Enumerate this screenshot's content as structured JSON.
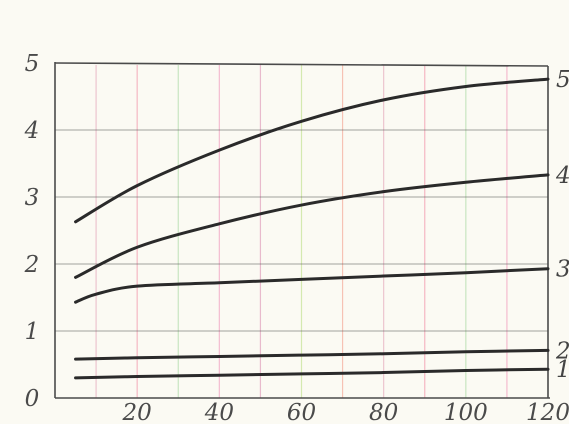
{
  "chart_data": {
    "type": "line",
    "title": "",
    "xlabel": "",
    "ylabel": "",
    "xlim": [
      0,
      120
    ],
    "ylim": [
      0,
      5
    ],
    "x_ticks": [
      20,
      40,
      60,
      80,
      100,
      120
    ],
    "y_ticks": [
      0,
      1,
      2,
      3,
      4,
      5
    ],
    "x_tick_labels": [
      "20",
      "40",
      "60",
      "80",
      "100",
      "120"
    ],
    "y_tick_labels": [
      "0",
      "1",
      "2",
      "3",
      "4",
      "5"
    ],
    "grid": true,
    "legend": "none",
    "colors": {
      "line": "#2a2a2a",
      "axis": "#4a4a4a",
      "grid_vertical": [
        "#e7b3c2",
        "#f2a1b4",
        "#b7dfb0",
        "#f2a6c3",
        "#e2a5c0",
        "#c8e49a",
        "#f5b0a0"
      ],
      "background": "#fbfaf3"
    },
    "series": [
      {
        "name": "1",
        "x": [
          5,
          20,
          40,
          60,
          80,
          100,
          120
        ],
        "values": [
          0.3,
          0.32,
          0.34,
          0.36,
          0.38,
          0.41,
          0.43
        ]
      },
      {
        "name": "2",
        "x": [
          5,
          20,
          40,
          60,
          80,
          100,
          120
        ],
        "values": [
          0.58,
          0.6,
          0.62,
          0.64,
          0.66,
          0.69,
          0.71
        ]
      },
      {
        "name": "3",
        "x": [
          5,
          10,
          20,
          40,
          60,
          80,
          100,
          120
        ],
        "values": [
          1.43,
          1.55,
          1.67,
          1.72,
          1.77,
          1.82,
          1.87,
          1.93
        ]
      },
      {
        "name": "4",
        "x": [
          5,
          20,
          40,
          60,
          80,
          100,
          120
        ],
        "values": [
          1.8,
          2.25,
          2.6,
          2.88,
          3.08,
          3.22,
          3.33
        ]
      },
      {
        "name": "5",
        "x": [
          5,
          20,
          40,
          60,
          80,
          100,
          120
        ],
        "values": [
          2.63,
          3.17,
          3.7,
          4.13,
          4.45,
          4.65,
          4.76
        ]
      }
    ]
  }
}
